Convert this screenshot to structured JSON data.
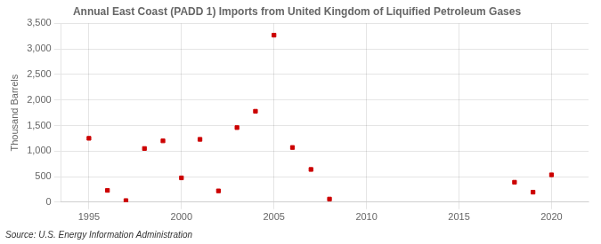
{
  "chart_data": {
    "type": "scatter",
    "title": "Annual East Coast (PADD 1) Imports from United Kingdom of Liquified Petroleum Gases",
    "ylabel": "Thousand Barrels",
    "source": "Source: U.S. Energy Information Administration",
    "x": [
      1995,
      1996,
      1997,
      1998,
      1999,
      2000,
      2001,
      2002,
      2003,
      2004,
      2005,
      2006,
      2007,
      2008,
      2018,
      2019,
      2020
    ],
    "values": [
      1250,
      230,
      30,
      1050,
      1200,
      475,
      1230,
      220,
      1460,
      1780,
      3270,
      1070,
      640,
      60,
      390,
      195,
      535
    ],
    "color": "#cc0000",
    "marker": "square",
    "xlim": [
      1993.5,
      2022
    ],
    "ylim": [
      0,
      3500
    ],
    "xticks": [
      1995,
      2000,
      2005,
      2010,
      2015,
      2020
    ],
    "yticks": [
      0,
      500,
      {
        "value": 1000,
        "label": "1,000"
      },
      {
        "value": 1500,
        "label": "1,500"
      },
      {
        "value": 2000,
        "label": "2,000"
      },
      {
        "value": 2500,
        "label": "2,500"
      },
      {
        "value": 3000,
        "label": "3,000"
      },
      {
        "value": 3500,
        "label": "3,500"
      }
    ],
    "grid": true
  }
}
